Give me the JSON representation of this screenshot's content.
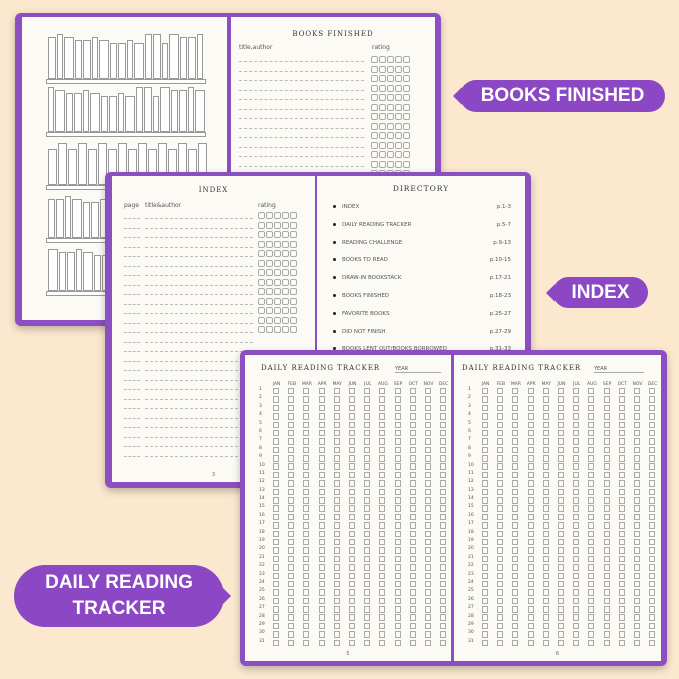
{
  "colors": {
    "background": "#fbe8cf",
    "accent": "#8b47c4",
    "page": "#fbfaf5"
  },
  "callouts": {
    "books_finished": "BOOKS FINISHED",
    "index": "INDEX",
    "tracker": "DAILY READING TRACKER"
  },
  "books_finished": {
    "title": "BOOKS FINISHED",
    "col_title": "title,author",
    "col_rating": "rating"
  },
  "index": {
    "title": "INDEX",
    "col_page": "page",
    "col_title": "title&author",
    "col_rating": "rating",
    "page_number": "3"
  },
  "directory": {
    "title": "DIRECTORY",
    "items": [
      {
        "label": "INDEX",
        "pages": "p.1-3"
      },
      {
        "label": "DAILY READING TRACKER",
        "pages": "p.5-7"
      },
      {
        "label": "READING CHALLENGE",
        "pages": "p.9-13"
      },
      {
        "label": "BOOKS TO READ",
        "pages": "p.10-15"
      },
      {
        "label": "DRAW-IN BOOKSTACK",
        "pages": "p.17-21"
      },
      {
        "label": "BOOKS FINISHED",
        "pages": "p.18-23"
      },
      {
        "label": "FAVORITE BOOKS",
        "pages": "p.25-27"
      },
      {
        "label": "DID NOT FINISH",
        "pages": "p.27-29"
      },
      {
        "label": "BOOKS LENT OUT/BOOKS BORROWED",
        "pages": "p.31-33"
      }
    ]
  },
  "tracker": {
    "title": "DAILY READING TRACKER",
    "year_label": "YEAR",
    "months": [
      "JAN",
      "FEB",
      "MAR",
      "APR",
      "MAY",
      "JUN",
      "JUL",
      "AUG",
      "SEP",
      "OCT",
      "NOV",
      "DEC"
    ],
    "days": 31,
    "left_page_number": "5",
    "right_page_number": "6"
  }
}
